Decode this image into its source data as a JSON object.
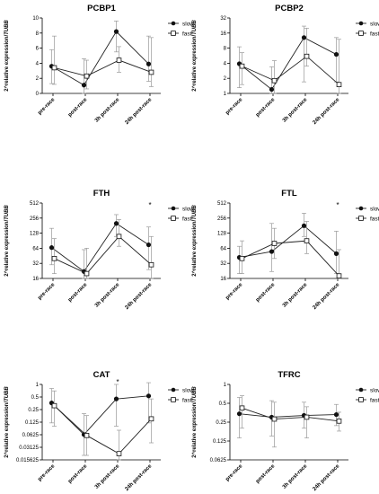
{
  "charts": [
    {
      "title": "PCBP1",
      "ylabel_prefix": "2^relative expression/",
      "ylabel_gene": "TUBB",
      "scale": "linear",
      "ylim": [
        0,
        10
      ],
      "ticks": [
        0,
        2,
        4,
        6,
        8,
        10
      ],
      "tick_labels": [
        "0",
        "2",
        "4",
        "6",
        "8",
        "10"
      ],
      "categories": [
        "pre-race",
        "post-race",
        "3h post-race",
        "24h post-race"
      ],
      "series": [
        {
          "name": "slow",
          "marker": "circle",
          "values": [
            3.6,
            1.1,
            8.2,
            3.9
          ],
          "lower": [
            1.3,
            0.0,
            5.5,
            1.6
          ],
          "upper": [
            5.8,
            4.6,
            9.6,
            7.6
          ]
        },
        {
          "name": "fast",
          "marker": "square",
          "values": [
            3.4,
            2.3,
            4.4,
            2.8
          ],
          "lower": [
            1.2,
            0.6,
            2.8,
            0.9
          ],
          "upper": [
            7.6,
            4.4,
            6.2,
            7.4
          ]
        }
      ],
      "annotations": []
    },
    {
      "title": "PCBP2",
      "ylabel_prefix": "2^relative expression/",
      "ylabel_gene": "TUBB",
      "scale": "log2",
      "ylim": [
        1,
        32
      ],
      "ticks": [
        1,
        2,
        4,
        8,
        16,
        32
      ],
      "tick_labels": [
        "1",
        "2",
        "4",
        "8",
        "16",
        "32"
      ],
      "categories": [
        "pre-race",
        "post-race",
        "3h post-race",
        "24h post-race"
      ],
      "series": [
        {
          "name": "slow",
          "marker": "circle",
          "values": [
            3.9,
            1.2,
            13.0,
            6.0
          ],
          "lower": [
            1.3,
            0.6,
            1.7,
            1.7
          ],
          "upper": [
            8.5,
            3.4,
            22.0,
            13.0
          ]
        },
        {
          "name": "fast",
          "marker": "square",
          "values": [
            3.5,
            1.8,
            5.5,
            1.5
          ],
          "lower": [
            1.5,
            1.0,
            3.5,
            0.6
          ],
          "upper": [
            6.5,
            4.5,
            20.0,
            12.0
          ]
        }
      ],
      "annotations": []
    },
    {
      "title": "FTH",
      "ylabel_prefix": "2^relative expression/",
      "ylabel_gene": "TUBB",
      "scale": "log2",
      "ylim": [
        16,
        512
      ],
      "ticks": [
        16,
        32,
        64,
        128,
        256,
        512
      ],
      "tick_labels": [
        "16",
        "32",
        "64",
        "128",
        "256",
        "512"
      ],
      "categories": [
        "pre-race",
        "post-race",
        "3h post-race",
        "24h post-race"
      ],
      "series": [
        {
          "name": "slow",
          "marker": "circle",
          "values": [
            66,
            22,
            200,
            75
          ],
          "lower": [
            30,
            16,
            110,
            24
          ],
          "upper": [
            160,
            60,
            300,
            170
          ]
        },
        {
          "name": "fast",
          "marker": "square",
          "values": [
            40,
            20,
            110,
            30
          ],
          "lower": [
            20,
            16,
            70,
            16
          ],
          "upper": [
            100,
            64,
            240,
            110
          ]
        }
      ],
      "annotations": [
        {
          "category_index": 3,
          "value": 420,
          "text": "*"
        }
      ]
    },
    {
      "title": "FTL",
      "ylabel_prefix": "2^relative expression/",
      "ylabel_gene": "TUBB",
      "scale": "log2",
      "ylim": [
        16,
        512
      ],
      "ticks": [
        16,
        32,
        64,
        128,
        256,
        512
      ],
      "tick_labels": [
        "16",
        "32",
        "64",
        "128",
        "256",
        "512"
      ],
      "categories": [
        "pre-race",
        "post-race",
        "3h post-race",
        "24h post-race"
      ],
      "series": [
        {
          "name": "slow",
          "marker": "circle",
          "values": [
            42,
            55,
            180,
            50
          ],
          "lower": [
            20,
            22,
            110,
            20
          ],
          "upper": [
            70,
            200,
            320,
            140
          ]
        },
        {
          "name": "fast",
          "marker": "square",
          "values": [
            40,
            80,
            90,
            18
          ],
          "lower": [
            20,
            40,
            50,
            16
          ],
          "upper": [
            90,
            160,
            220,
            60
          ]
        }
      ],
      "annotations": [
        {
          "category_index": 3,
          "value": 420,
          "text": "*"
        }
      ]
    },
    {
      "title": "CAT",
      "ylabel_prefix": "2^relative expression/",
      "ylabel_gene": "TUBB",
      "scale": "log2",
      "ylim": [
        0.015625,
        1
      ],
      "ticks": [
        0.015625,
        0.03125,
        0.0625,
        0.125,
        0.25,
        0.5,
        1
      ],
      "tick_labels": [
        "0.015625",
        "0.03125",
        "0.0625",
        "0.125",
        "0.25",
        "0.5",
        "1"
      ],
      "categories": [
        "pre-race",
        "post-race",
        "3h post-race",
        "24h post-race"
      ],
      "series": [
        {
          "name": "slow",
          "marker": "circle",
          "values": [
            0.36,
            0.063,
            0.45,
            0.53
          ],
          "lower": [
            0.12,
            0.02,
            0.1,
            0.12
          ],
          "upper": [
            0.8,
            0.2,
            1.0,
            1.1
          ]
        },
        {
          "name": "fast",
          "marker": "square",
          "values": [
            0.31,
            0.06,
            0.022,
            0.15
          ],
          "lower": [
            0.1,
            0.02,
            0.015625,
            0.04
          ],
          "upper": [
            0.7,
            0.18,
            0.08,
            0.45
          ]
        }
      ],
      "annotations": [
        {
          "category_index": 2,
          "value": 1.0,
          "text": "*"
        }
      ]
    },
    {
      "title": "TFRC",
      "ylabel_prefix": "2^relative expression/",
      "ylabel_gene": "TUBB",
      "scale": "log2",
      "ylim": [
        0.0625,
        1
      ],
      "ticks": [
        0.0625,
        0.125,
        0.25,
        0.5,
        1
      ],
      "tick_labels": [
        "0.0625",
        "0.125",
        "0.25",
        "0.5",
        "1"
      ],
      "categories": [
        "pre-race",
        "post-race",
        "3h post-race",
        "24h post-race"
      ],
      "series": [
        {
          "name": "slow",
          "marker": "circle",
          "values": [
            0.34,
            0.3,
            0.32,
            0.33
          ],
          "lower": [
            0.14,
            0.15,
            0.2,
            0.22
          ],
          "upper": [
            0.62,
            0.55,
            0.52,
            0.48
          ]
        },
        {
          "name": "fast",
          "marker": "square",
          "values": [
            0.42,
            0.28,
            0.3,
            0.26
          ],
          "lower": [
            0.2,
            0.1,
            0.14,
            0.18
          ],
          "upper": [
            0.66,
            0.52,
            0.44,
            0.36
          ]
        }
      ],
      "annotations": []
    }
  ]
}
